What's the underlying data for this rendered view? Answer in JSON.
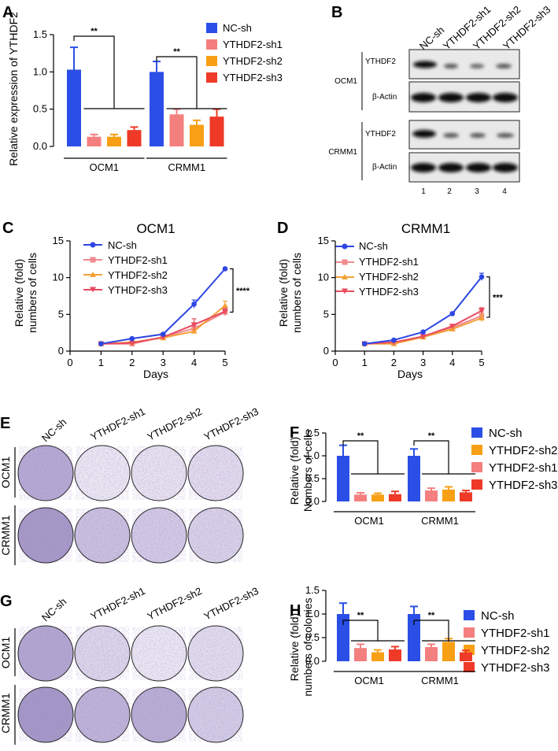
{
  "panel_letters": [
    "A",
    "B",
    "C",
    "D",
    "E",
    "F",
    "G",
    "H"
  ],
  "colors": {
    "nc": "#2b4fe6",
    "sh1": "#f47f7f",
    "sh2": "#f7a015",
    "sh3": "#ee3a27",
    "line_nc": "#2d46e3",
    "line_sh1": "#f08a8e",
    "line_sh2": "#f4a138",
    "line_sh3": "#e94b5f",
    "stain": "#8e7bb4"
  },
  "blot": {
    "lanes": [
      "NC-sh",
      "YTHDF2-sh1",
      "YTHDF2-sh2",
      "YTHDF2-sh3"
    ],
    "lane_numbers": [
      "1",
      "2",
      "3",
      "4"
    ],
    "cell_lines": [
      "OCM1",
      "CRMM1"
    ],
    "protein_labels": [
      "YTHDF2",
      "β-Actin",
      "YTHDF2",
      "β-Actin"
    ]
  },
  "plates": {
    "e_header": [
      "NC-sh",
      "YTHDF2-sh1",
      "YTHDF2-sh2",
      "YTHDF2-sh3"
    ],
    "g_header": [
      "NC-sh",
      "YTHDF2-sh1",
      "YTHDF2-sh2",
      "YTHDF2-sh3"
    ],
    "rows": [
      "OCM1",
      "CRMM1"
    ]
  },
  "chart_data": [
    {
      "id": "A",
      "type": "bar",
      "groups": [
        "OCM1",
        "CRMM1"
      ],
      "ylabel": "Relative expression of YTHDF2",
      "ylim": [
        0,
        1.5
      ],
      "yticks": [
        "0.0",
        "0.5",
        "1.0",
        "1.5"
      ],
      "legend": [
        "NC-sh",
        "YTHDF2-sh1",
        "YTHDF2-sh2",
        "YTHDF2-sh3"
      ],
      "series": [
        {
          "name": "NC-sh",
          "values": [
            1.03,
            1.0
          ],
          "errors": [
            0.3,
            0.14
          ]
        },
        {
          "name": "YTHDF2-sh1",
          "values": [
            0.13,
            0.43
          ],
          "errors": [
            0.03,
            0.07
          ]
        },
        {
          "name": "YTHDF2-sh2",
          "values": [
            0.13,
            0.29
          ],
          "errors": [
            0.03,
            0.06
          ]
        },
        {
          "name": "YTHDF2-sh3",
          "values": [
            0.22,
            0.4
          ],
          "errors": [
            0.04,
            0.1
          ]
        }
      ],
      "significance": [
        "**",
        "**"
      ]
    },
    {
      "id": "C",
      "type": "line",
      "title": "OCM1",
      "xlabel": "Days",
      "ylabel": "Relative (fold) numbers of cells",
      "x": [
        1,
        2,
        3,
        4,
        5
      ],
      "xlim": [
        0,
        5
      ],
      "ylim": [
        0,
        15
      ],
      "xticks": [
        "0",
        "1",
        "2",
        "3",
        "4",
        "5"
      ],
      "yticks": [
        "0",
        "5",
        "10",
        "15"
      ],
      "series": [
        {
          "name": "NC-sh",
          "values": [
            1.0,
            1.7,
            2.3,
            6.4,
            11.2
          ],
          "errors": [
            0.1,
            0.1,
            0.15,
            0.55,
            0.1
          ]
        },
        {
          "name": "YTHDF2-sh1",
          "values": [
            1.0,
            1.0,
            1.9,
            3.1,
            5.3
          ],
          "errors": [
            0.1,
            0.1,
            0.1,
            0.4,
            0.5
          ]
        },
        {
          "name": "YTHDF2-sh2",
          "values": [
            1.0,
            1.2,
            1.8,
            2.7,
            6.2
          ],
          "errors": [
            0.1,
            0.1,
            0.1,
            0.3,
            0.6
          ]
        },
        {
          "name": "YTHDF2-sh3",
          "values": [
            1.0,
            1.1,
            1.9,
            3.6,
            5.4
          ],
          "errors": [
            0.1,
            0.1,
            0.15,
            0.8,
            0.4
          ]
        }
      ],
      "significance": "****"
    },
    {
      "id": "D",
      "type": "line",
      "title": "CRMM1",
      "xlabel": "Days",
      "ylabel": "Relative (fold) numbers of cells",
      "x": [
        1,
        2,
        3,
        4,
        5
      ],
      "xlim": [
        0,
        5
      ],
      "ylim": [
        0,
        15
      ],
      "xticks": [
        "0",
        "1",
        "2",
        "3",
        "4",
        "5"
      ],
      "yticks": [
        "0",
        "5",
        "10",
        "15"
      ],
      "series": [
        {
          "name": "NC-sh",
          "values": [
            1.0,
            1.5,
            2.6,
            5.1,
            10.1
          ],
          "errors": [
            0.1,
            0.1,
            0.15,
            0.2,
            0.5
          ]
        },
        {
          "name": "YTHDF2-sh1",
          "values": [
            1.0,
            1.1,
            2.0,
            3.2,
            4.8
          ],
          "errors": [
            0.1,
            0.1,
            0.1,
            0.2,
            0.5
          ]
        },
        {
          "name": "YTHDF2-sh2",
          "values": [
            1.0,
            1.0,
            1.9,
            3.0,
            4.5
          ],
          "errors": [
            0.1,
            0.1,
            0.1,
            0.2,
            0.5
          ]
        },
        {
          "name": "YTHDF2-sh3",
          "values": [
            1.0,
            1.2,
            2.0,
            3.4,
            5.5
          ],
          "errors": [
            0.1,
            0.1,
            0.1,
            0.2,
            0.4
          ]
        }
      ],
      "significance": "***"
    },
    {
      "id": "F",
      "type": "bar",
      "groups": [
        "OCM1",
        "CRMM1"
      ],
      "ylabel": "Relative (fold) Numbers of cells",
      "ylim": [
        0,
        1.5
      ],
      "yticks": [
        "0.0",
        "0.5",
        "1.0",
        "1.5"
      ],
      "legend": [
        "NC-sh",
        "YTHDF2-sh2",
        "YTHDF2-sh1",
        "YTHDF2-sh3"
      ],
      "series": [
        {
          "name": "NC-sh",
          "values": [
            1.0,
            1.0
          ],
          "errors": [
            0.23,
            0.15
          ]
        },
        {
          "name": "YTHDF2-sh1",
          "values": [
            0.15,
            0.24
          ],
          "errors": [
            0.04,
            0.05
          ]
        },
        {
          "name": "YTHDF2-sh2",
          "values": [
            0.15,
            0.26
          ],
          "errors": [
            0.03,
            0.06
          ]
        },
        {
          "name": "YTHDF2-sh3",
          "values": [
            0.16,
            0.2
          ],
          "errors": [
            0.06,
            0.04
          ]
        }
      ],
      "significance": [
        "**",
        "**"
      ]
    },
    {
      "id": "H",
      "type": "bar",
      "groups": [
        "OCM1",
        "CRMM1"
      ],
      "ylabel": "Relative (fold) numbers of colonies",
      "ylim": [
        0,
        1.5
      ],
      "yticks": [
        "0.0",
        "0.5",
        "1.0",
        "1.5"
      ],
      "legend": [
        "NC-sh",
        "YTHDF2-sh1",
        "YTHDF2-sh2",
        "YTHDF2-sh3"
      ],
      "series": [
        {
          "name": "NC-sh",
          "values": [
            1.0,
            1.0
          ],
          "errors": [
            0.23,
            0.16
          ]
        },
        {
          "name": "YTHDF2-sh1",
          "values": [
            0.28,
            0.3
          ],
          "errors": [
            0.08,
            0.06
          ]
        },
        {
          "name": "YTHDF2-sh2",
          "values": [
            0.19,
            0.41
          ],
          "errors": [
            0.05,
            0.07
          ]
        },
        {
          "name": "YTHDF2-sh3",
          "values": [
            0.25,
            0.19
          ],
          "errors": [
            0.06,
            0.04
          ]
        }
      ],
      "significance": [
        "**",
        "**"
      ]
    }
  ]
}
